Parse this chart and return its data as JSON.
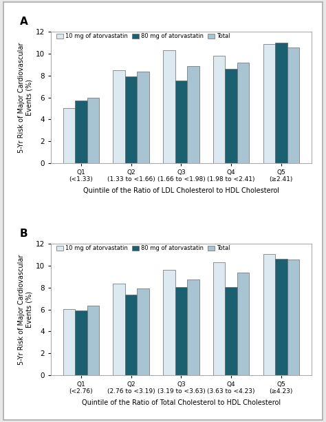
{
  "panel_A": {
    "label": "A",
    "cat_top": [
      "Q1",
      "Q2",
      "Q3",
      "Q4",
      "Q5"
    ],
    "cat_bot": [
      "(<1.33)",
      "(1.33 to <1.66)",
      "(1.66 to <1.98)",
      "(1.98 to <2.41)",
      "(≥2.41)"
    ],
    "series_10mg": [
      5.0,
      8.5,
      10.35,
      9.8,
      10.9
    ],
    "series_80mg": [
      5.7,
      7.95,
      7.55,
      8.6,
      11.0
    ],
    "series_total": [
      5.95,
      8.35,
      8.9,
      9.2,
      10.55
    ],
    "xlabel": "Quintile of the Ratio of LDL Cholesterol to HDL Cholesterol"
  },
  "panel_B": {
    "label": "B",
    "cat_top": [
      "Q1",
      "Q2",
      "Q3",
      "Q4",
      "Q5"
    ],
    "cat_bot": [
      "(<2.76)",
      "(2.76 to <3.19)",
      "(3.19 to <3.63)",
      "(3.63 to <4.23)",
      "(≥4.23)"
    ],
    "series_10mg": [
      6.05,
      8.4,
      9.6,
      10.35,
      11.1
    ],
    "series_80mg": [
      5.9,
      7.35,
      8.05,
      8.05,
      10.65
    ],
    "series_total": [
      6.35,
      7.95,
      8.75,
      9.35,
      10.6
    ],
    "xlabel": "Quintile of the Ratio of Total Cholesterol to HDL Cholesterol"
  },
  "ylabel": "5-Yr Risk of Major Cardiovascular\nEvents (%)",
  "ylim": [
    0,
    12
  ],
  "yticks": [
    0,
    2,
    4,
    6,
    8,
    10,
    12
  ],
  "color_10mg": "#dce9f0",
  "color_80mg": "#1b6070",
  "color_total": "#a8c4d2",
  "bar_width": 0.24,
  "legend_labels": [
    "10 mg of atorvastatin",
    "80 mg of atorvastatin",
    "Total"
  ],
  "background_color": "#ffffff",
  "edge_color": "#666666",
  "border_color": "#aaaaaa",
  "fig_bg": "#e8e8e8"
}
